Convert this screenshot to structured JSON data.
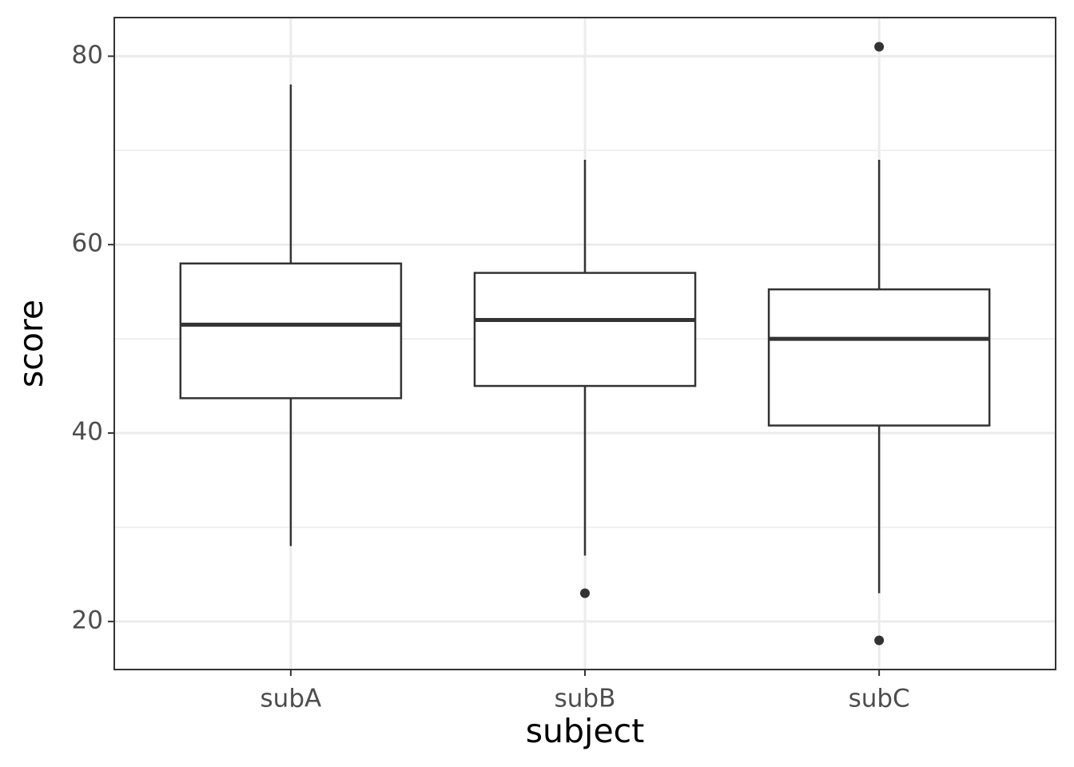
{
  "chart_data": {
    "type": "boxplot",
    "x_label": "subject",
    "y_label": "score",
    "categories": [
      "subA",
      "subB",
      "subC"
    ],
    "boxes": [
      {
        "whisker_low": 28,
        "q1": 43.7,
        "median": 51.5,
        "q3": 58,
        "whisker_high": 77,
        "outliers": []
      },
      {
        "whisker_low": 27,
        "q1": 45,
        "median": 52,
        "q3": 57,
        "whisker_high": 69,
        "outliers": [
          23
        ]
      },
      {
        "whisker_low": 23,
        "q1": 40.8,
        "median": 50,
        "q3": 55.25,
        "whisker_high": 69,
        "outliers": [
          81,
          18
        ]
      }
    ],
    "box_fill": "#ffffff",
    "line_color": "#333333",
    "ylim": [
      14.9,
      84.1
    ],
    "yticks": [
      20,
      40,
      60,
      80
    ],
    "grid": true,
    "minor_grid": true
  }
}
